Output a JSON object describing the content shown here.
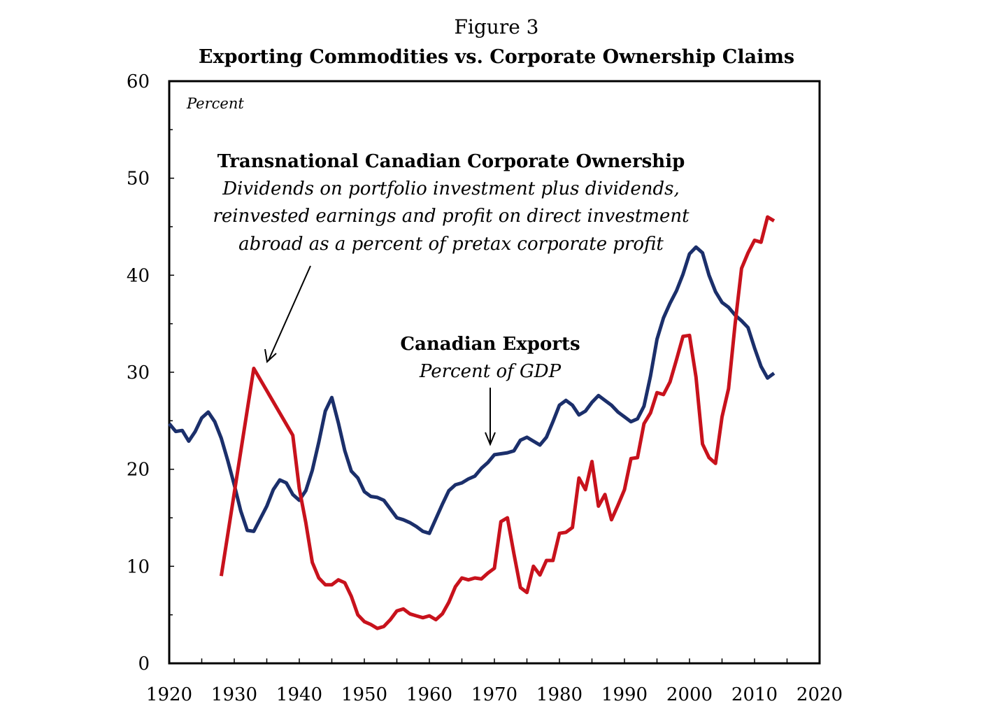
{
  "chart_data": {
    "type": "line",
    "figure_label": "Figure 3",
    "title": "Exporting Commodities vs. Corporate Ownership Claims",
    "ylabel": "Percent",
    "xlabel": "",
    "xlim": [
      1920,
      2020
    ],
    "ylim": [
      0,
      60
    ],
    "x_ticks": [
      "1920",
      "1930",
      "1940",
      "1950",
      "1960",
      "1970",
      "1980",
      "1990",
      "2000",
      "2010",
      "2020"
    ],
    "y_ticks": [
      "0",
      "10",
      "20",
      "30",
      "40",
      "50",
      "60"
    ],
    "grid": false,
    "legend": "none (series identified by annotations)",
    "series": [
      {
        "name": "Canadian Exports",
        "color": "#1b2f6b",
        "x": [
          1920,
          1921,
          1922,
          1923,
          1924,
          1925,
          1926,
          1927,
          1928,
          1929,
          1930,
          1931,
          1932,
          1933,
          1934,
          1935,
          1936,
          1937,
          1938,
          1939,
          1940,
          1941,
          1942,
          1943,
          1944,
          1945,
          1946,
          1947,
          1948,
          1949,
          1950,
          1951,
          1952,
          1953,
          1954,
          1955,
          1956,
          1957,
          1958,
          1959,
          1960,
          1961,
          1962,
          1963,
          1964,
          1965,
          1966,
          1967,
          1968,
          1969,
          1970,
          1971,
          1972,
          1973,
          1974,
          1975,
          1976,
          1977,
          1978,
          1979,
          1980,
          1981,
          1982,
          1983,
          1984,
          1985,
          1986,
          1987,
          1988,
          1989,
          1990,
          1991,
          1992,
          1993,
          1994,
          1995,
          1996,
          1997,
          1998,
          1999,
          2000,
          2001,
          2002,
          2003,
          2004,
          2005,
          2006,
          2007,
          2008,
          2009,
          2010,
          2011,
          2012,
          2013
        ],
        "values": [
          24.7,
          23.9,
          24.0,
          22.9,
          23.9,
          25.3,
          25.9,
          24.9,
          23.2,
          20.9,
          18.4,
          15.7,
          13.7,
          13.6,
          14.9,
          16.2,
          17.9,
          18.9,
          18.6,
          17.4,
          16.8,
          17.8,
          19.9,
          22.8,
          26.0,
          27.4,
          24.8,
          21.9,
          19.8,
          19.1,
          17.7,
          17.2,
          17.1,
          16.8,
          15.9,
          15.0,
          14.8,
          14.5,
          14.1,
          13.6,
          13.4,
          14.9,
          16.4,
          17.8,
          18.4,
          18.6,
          19.0,
          19.3,
          20.1,
          20.7,
          21.5,
          21.6,
          21.7,
          21.9,
          23.0,
          23.3,
          22.9,
          22.5,
          23.3,
          24.9,
          26.6,
          27.1,
          26.6,
          25.6,
          26.0,
          26.9,
          27.6,
          27.1,
          26.6,
          25.9,
          25.4,
          24.9,
          25.2,
          26.5,
          29.6,
          33.4,
          35.6,
          37.1,
          38.4,
          40.1,
          42.2,
          42.9,
          42.3,
          40.0,
          38.3,
          37.2,
          36.7,
          35.9,
          35.3,
          34.6,
          32.5,
          30.6,
          29.4,
          29.9
        ]
      },
      {
        "name": "Transnational Canadian Corporate Ownership",
        "color": "#c8121c",
        "x": [
          1928,
          1933,
          1939,
          1940,
          1941,
          1942,
          1943,
          1944,
          1945,
          1946,
          1947,
          1948,
          1949,
          1950,
          1951,
          1952,
          1953,
          1954,
          1955,
          1956,
          1957,
          1958,
          1959,
          1960,
          1961,
          1962,
          1963,
          1964,
          1965,
          1966,
          1967,
          1968,
          1969,
          1970,
          1971,
          1972,
          1973,
          1974,
          1975,
          1976,
          1977,
          1978,
          1979,
          1980,
          1981,
          1982,
          1983,
          1984,
          1985,
          1986,
          1987,
          1988,
          1989,
          1990,
          1991,
          1992,
          1993,
          1994,
          1995,
          1996,
          1997,
          1998,
          1999,
          2000,
          2001,
          2002,
          2003,
          2004,
          2005,
          2006,
          2007,
          2008,
          2009,
          2010,
          2011,
          2012,
          2013
        ],
        "values": [
          9.0,
          30.4,
          23.5,
          18.0,
          14.5,
          10.4,
          8.8,
          8.1,
          8.1,
          8.6,
          8.3,
          6.9,
          5.0,
          4.3,
          4.0,
          3.6,
          3.8,
          4.5,
          5.4,
          5.6,
          5.1,
          4.9,
          4.7,
          4.9,
          4.5,
          5.1,
          6.3,
          7.9,
          8.8,
          8.6,
          8.8,
          8.7,
          9.3,
          9.8,
          14.6,
          15.0,
          11.3,
          7.8,
          7.3,
          10.0,
          9.1,
          10.6,
          10.6,
          13.4,
          13.5,
          14.0,
          19.1,
          17.9,
          20.8,
          16.2,
          17.4,
          14.8,
          16.3,
          17.9,
          21.1,
          21.2,
          24.7,
          25.8,
          27.9,
          27.7,
          29.0,
          31.3,
          33.7,
          33.8,
          29.5,
          22.6,
          21.2,
          20.6,
          25.4,
          28.3,
          34.9,
          40.7,
          42.3,
          43.6,
          43.4,
          46.0,
          45.6
        ]
      }
    ],
    "annotations": {
      "ownership": {
        "title": "Transnational Canadian Corporate Ownership",
        "line1": "Dividends on portfolio investment plus dividends,",
        "line2": "reinvested earnings and profit on direct investment",
        "line3": "abroad  as a percent of pretax corporate profit"
      },
      "exports": {
        "title": "Canadian Exports",
        "subtitle": "Percent of GDP"
      }
    }
  }
}
